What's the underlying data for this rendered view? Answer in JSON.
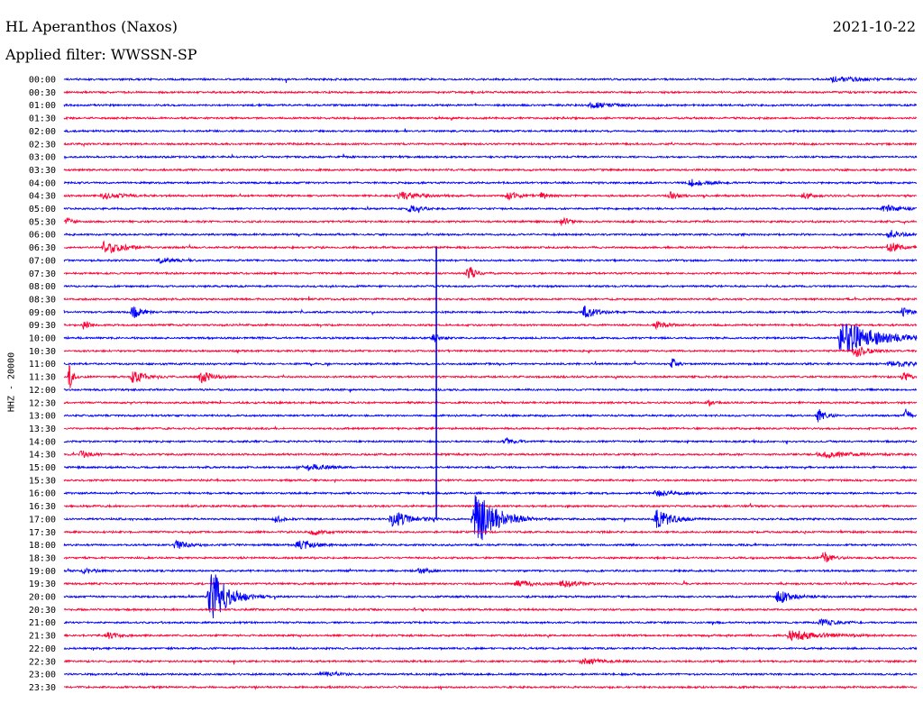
{
  "header": {
    "station": "HL Aperanthos (Naxos)",
    "date": "2021-10-22",
    "filter": "Applied filter: WWSSN-SP"
  },
  "chart_data": {
    "type": "line",
    "title": "HL Aperanthos (Naxos)",
    "ylabel": "HHZ - 20000",
    "row_labels": [
      "00:00",
      "00:30",
      "01:00",
      "01:30",
      "02:00",
      "02:30",
      "03:00",
      "03:30",
      "04:00",
      "04:30",
      "05:00",
      "05:30",
      "06:00",
      "06:30",
      "07:00",
      "07:30",
      "08:00",
      "08:30",
      "09:00",
      "09:30",
      "10:00",
      "10:30",
      "11:00",
      "11:30",
      "12:00",
      "12:30",
      "13:00",
      "13:30",
      "14:00",
      "14:30",
      "15:00",
      "15:30",
      "16:00",
      "16:30",
      "17:00",
      "17:30",
      "18:00",
      "18:30",
      "19:00",
      "19:30",
      "20:00",
      "20:30",
      "21:00",
      "21:30",
      "22:00",
      "22:30",
      "23:00",
      "23:30"
    ],
    "minutes_per_line": 30,
    "colors": {
      "blue": "#0000ff",
      "red": "#ff0033"
    },
    "row_color_pattern": [
      "blue",
      "red"
    ],
    "noise_amplitude": 1.2,
    "events": [
      {
        "row": 0,
        "minute": 27,
        "amp": 2.5,
        "dur": 2.0
      },
      {
        "row": 2,
        "minute": 18.5,
        "amp": 2.5,
        "dur": 1.5
      },
      {
        "row": 8,
        "minute": 22,
        "amp": 3.5,
        "dur": 1.0
      },
      {
        "row": 9,
        "minute": 1.3,
        "amp": 3,
        "dur": 1.2
      },
      {
        "row": 9,
        "minute": 11.8,
        "amp": 4,
        "dur": 1.2
      },
      {
        "row": 9,
        "minute": 15.6,
        "amp": 4,
        "dur": 0.7
      },
      {
        "row": 9,
        "minute": 16.8,
        "amp": 3,
        "dur": 0.5
      },
      {
        "row": 9,
        "minute": 21.3,
        "amp": 3.5,
        "dur": 0.5
      },
      {
        "row": 9,
        "minute": 26,
        "amp": 3,
        "dur": 0.7
      },
      {
        "row": 10,
        "minute": 12.1,
        "amp": 3,
        "dur": 0.8
      },
      {
        "row": 10,
        "minute": 28.8,
        "amp": 3,
        "dur": 1.2
      },
      {
        "row": 11,
        "minute": 0.1,
        "amp": 4,
        "dur": 0.3
      },
      {
        "row": 11,
        "minute": 17.5,
        "amp": 4,
        "dur": 0.5
      },
      {
        "row": 12,
        "minute": 29,
        "amp": 4,
        "dur": 0.8
      },
      {
        "row": 13,
        "minute": 1.4,
        "amp": 6,
        "dur": 1.2
      },
      {
        "row": 13,
        "minute": 29,
        "amp": 5,
        "dur": 0.8
      },
      {
        "row": 14,
        "minute": 3.3,
        "amp": 2.5,
        "dur": 1.0
      },
      {
        "row": 15,
        "minute": 14.2,
        "amp": 6,
        "dur": 0.6
      },
      {
        "row": 18,
        "minute": 2.4,
        "amp": 6,
        "dur": 0.6
      },
      {
        "row": 18,
        "minute": 18.3,
        "amp": 6,
        "dur": 0.8
      },
      {
        "row": 18,
        "minute": 29.5,
        "amp": 5,
        "dur": 0.5
      },
      {
        "row": 19,
        "minute": 0.7,
        "amp": 5,
        "dur": 0.3
      },
      {
        "row": 19,
        "minute": 20.8,
        "amp": 3,
        "dur": 0.8
      },
      {
        "row": 20,
        "minute": 13,
        "amp": 4,
        "dur": 0.5
      },
      {
        "row": 20,
        "minute": 27.3,
        "amp": 15,
        "dur": 2.5
      },
      {
        "row": 21,
        "minute": 27.8,
        "amp": 6,
        "dur": 0.8
      },
      {
        "row": 22,
        "minute": 21.4,
        "amp": 6,
        "dur": 0.3
      },
      {
        "row": 22,
        "minute": 29,
        "amp": 3,
        "dur": 1.5
      },
      {
        "row": 23,
        "minute": 0.2,
        "amp": 15,
        "dur": 0.2
      },
      {
        "row": 23,
        "minute": 2.4,
        "amp": 6,
        "dur": 0.8
      },
      {
        "row": 23,
        "minute": 4.8,
        "amp": 6,
        "dur": 0.8
      },
      {
        "row": 23,
        "minute": 29.5,
        "amp": 4,
        "dur": 0.5
      },
      {
        "row": 25,
        "minute": 22.6,
        "amp": 6,
        "dur": 0.3
      },
      {
        "row": 26,
        "minute": 26.5,
        "amp": 7,
        "dur": 0.5
      },
      {
        "row": 26,
        "minute": 29.6,
        "amp": 7,
        "dur": 0.3
      },
      {
        "row": 28,
        "minute": 15.5,
        "amp": 4,
        "dur": 0.5
      },
      {
        "row": 29,
        "minute": 0.6,
        "amp": 4,
        "dur": 0.5
      },
      {
        "row": 29,
        "minute": 26.5,
        "amp": 3,
        "dur": 2.0
      },
      {
        "row": 30,
        "minute": 8.6,
        "amp": 3,
        "dur": 1.2
      },
      {
        "row": 32,
        "minute": 20.8,
        "amp": 3,
        "dur": 1.2
      },
      {
        "row": 34,
        "minute": 11.5,
        "amp": 8,
        "dur": 1.2
      },
      {
        "row": 34,
        "minute": 14.4,
        "amp": 26,
        "dur": 1.5
      },
      {
        "row": 34,
        "minute": 20.8,
        "amp": 10,
        "dur": 1.0
      },
      {
        "row": 34,
        "minute": 7.4,
        "amp": 3,
        "dur": 0.6
      },
      {
        "row": 35,
        "minute": 8.7,
        "amp": 3,
        "dur": 0.8
      },
      {
        "row": 36,
        "minute": 3.9,
        "amp": 4,
        "dur": 0.8
      },
      {
        "row": 36,
        "minute": 8.2,
        "amp": 5,
        "dur": 1.0
      },
      {
        "row": 37,
        "minute": 26.7,
        "amp": 6,
        "dur": 0.5
      },
      {
        "row": 38,
        "minute": 0.7,
        "amp": 3,
        "dur": 0.6
      },
      {
        "row": 38,
        "minute": 12.5,
        "amp": 3,
        "dur": 0.6
      },
      {
        "row": 39,
        "minute": 15.9,
        "amp": 3,
        "dur": 1.2
      },
      {
        "row": 39,
        "minute": 17.5,
        "amp": 3,
        "dur": 1.2
      },
      {
        "row": 40,
        "minute": 5.1,
        "amp": 26,
        "dur": 1.2
      },
      {
        "row": 40,
        "minute": 25.1,
        "amp": 6,
        "dur": 1.0
      },
      {
        "row": 42,
        "minute": 26.6,
        "amp": 3,
        "dur": 1.0
      },
      {
        "row": 43,
        "minute": 1.5,
        "amp": 3,
        "dur": 0.8
      },
      {
        "row": 43,
        "minute": 25.5,
        "amp": 5,
        "dur": 2.0
      },
      {
        "row": 45,
        "minute": 18.2,
        "amp": 4,
        "dur": 1.0
      },
      {
        "row": 46,
        "minute": 9.0,
        "amp": 2,
        "dur": 1.0
      }
    ],
    "long_spike": {
      "row": 20,
      "minute": 13.1,
      "top_row": 13,
      "bottom_row": 34
    }
  }
}
